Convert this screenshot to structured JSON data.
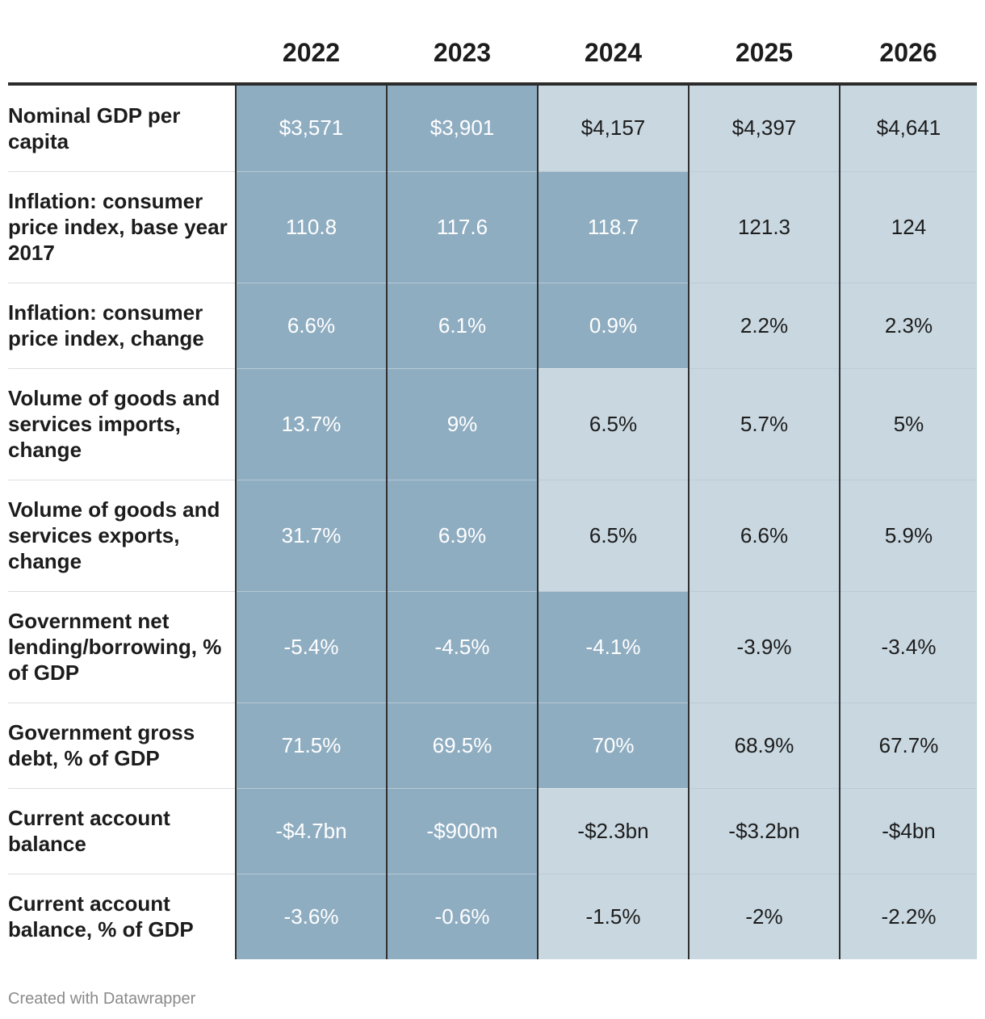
{
  "chart_data": {
    "type": "table",
    "columns": [
      "2022",
      "2023",
      "2024",
      "2025",
      "2026"
    ],
    "rows": [
      {
        "label": "Nominal GDP per capita",
        "values": [
          "$3,571",
          "$3,901",
          "$4,157",
          "$4,397",
          "$4,641"
        ],
        "shaded": [
          true,
          true,
          false,
          false,
          false
        ],
        "row_height": 108
      },
      {
        "label": "Inflation: consumer price index, base year 2017",
        "values": [
          "110.8",
          "117.6",
          "118.7",
          "121.3",
          "124"
        ],
        "shaded": [
          true,
          true,
          true,
          false,
          false
        ],
        "row_height": 138
      },
      {
        "label": "Inflation: consumer price index, change",
        "values": [
          "6.6%",
          "6.1%",
          "0.9%",
          "2.2%",
          "2.3%"
        ],
        "shaded": [
          true,
          true,
          true,
          false,
          false
        ],
        "row_height": 106
      },
      {
        "label": "Volume of goods and services imports, change",
        "values": [
          "13.7%",
          "9%",
          "6.5%",
          "5.7%",
          "5%"
        ],
        "shaded": [
          true,
          true,
          false,
          false,
          false
        ],
        "row_height": 138
      },
      {
        "label": "Volume of goods and services exports, change",
        "values": [
          "31.7%",
          "6.9%",
          "6.5%",
          "6.6%",
          "5.9%"
        ],
        "shaded": [
          true,
          true,
          false,
          false,
          false
        ],
        "row_height": 138
      },
      {
        "label": "Government net lending/borrowing, % of GDP",
        "values": [
          "-5.4%",
          "-4.5%",
          "-4.1%",
          "-3.9%",
          "-3.4%"
        ],
        "shaded": [
          true,
          true,
          true,
          false,
          false
        ],
        "row_height": 138
      },
      {
        "label": "Government gross debt, % of GDP",
        "values": [
          "71.5%",
          "69.5%",
          "70%",
          "68.9%",
          "67.7%"
        ],
        "shaded": [
          true,
          true,
          true,
          false,
          false
        ],
        "row_height": 106
      },
      {
        "label": "Current account balance",
        "values": [
          "-$4.7bn",
          "-$900m",
          "-$2.3bn",
          "-$3.2bn",
          "-$4bn"
        ],
        "shaded": [
          true,
          true,
          false,
          false,
          false
        ],
        "row_height": 106
      },
      {
        "label": "Current account balance, % of GDP",
        "values": [
          "-3.6%",
          "-0.6%",
          "-1.5%",
          "-2%",
          "-2.2%"
        ],
        "shaded": [
          true,
          true,
          false,
          false,
          false
        ],
        "row_height": 106
      }
    ],
    "colors": {
      "shaded": "#8fadc1",
      "unshaded": "#c9d7e0"
    }
  },
  "footer": {
    "credit": "Created with Datawrapper"
  }
}
